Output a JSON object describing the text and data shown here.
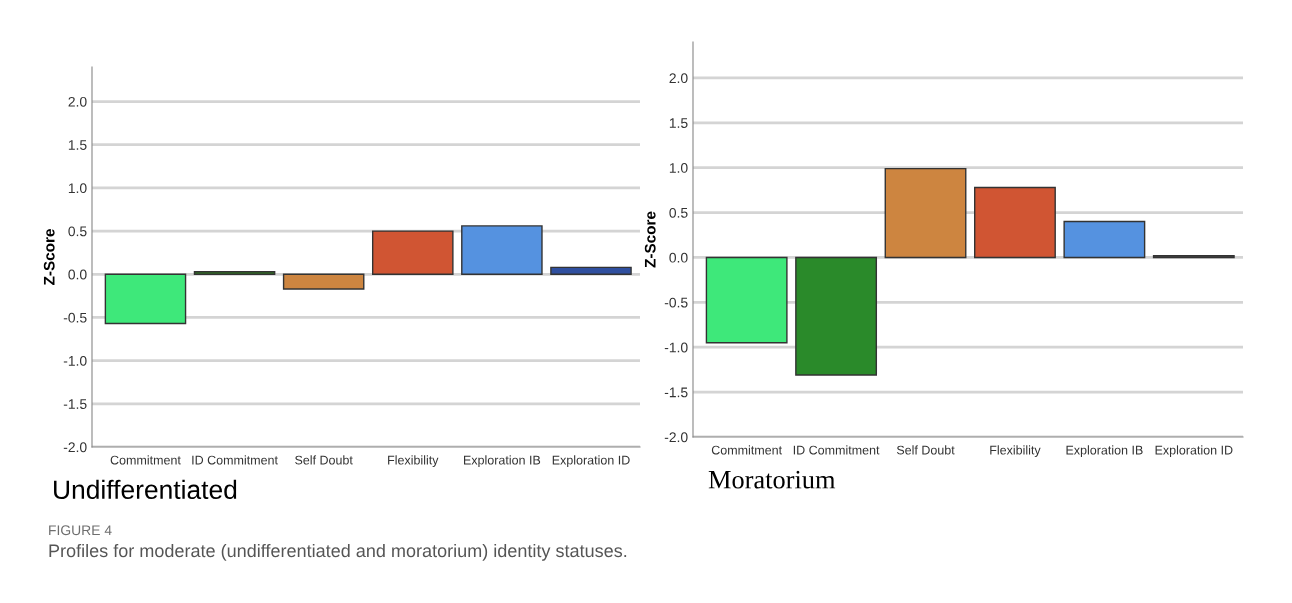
{
  "chart_data": [
    {
      "type": "bar",
      "title": "Undifferentiated",
      "ylabel": "Z-Score",
      "categories": [
        "Commitment",
        "ID Commitment",
        "Self Doubt",
        "Flexibility",
        "Exploration IB",
        "Exploration ID"
      ],
      "values": [
        -0.57,
        0.03,
        -0.17,
        0.5,
        0.56,
        0.08
      ],
      "colors": [
        "#3ee87a",
        "#2f7a1f",
        "#cd8540",
        "#d05533",
        "#5592e0",
        "#2f4f9f"
      ],
      "ylim": [
        -2.0,
        2.4
      ],
      "yticks": [
        {
          "value": -2.0,
          "label": "-2.0"
        },
        {
          "value": -1.5,
          "label": "-1.5"
        },
        {
          "value": -1.0,
          "label": "-1.0"
        },
        {
          "value": -0.5,
          "label": "-0.5"
        },
        {
          "value": 0.0,
          "label": "0.0"
        },
        {
          "value": 0.5,
          "label": "0.5"
        },
        {
          "value": 1.0,
          "label": "1.0"
        },
        {
          "value": 1.5,
          "label": "1.5"
        },
        {
          "value": 2.0,
          "label": "2.0"
        }
      ],
      "grid": "y",
      "annotations": [
        "FIGURE 4",
        "Profiles for moderate (undifferentiated and moratorium) identity statuses."
      ]
    },
    {
      "type": "bar",
      "title": "Moratorium",
      "ylabel": "Z-Score",
      "categories": [
        "Commitment",
        "ID Commitment",
        "Self Doubt",
        "Flexibility",
        "Exploration IB",
        "Exploration ID"
      ],
      "values": [
        -0.95,
        -1.31,
        0.99,
        0.78,
        0.4,
        0.02
      ],
      "colors": [
        "#3ee87a",
        "#2a8a2a",
        "#cd8540",
        "#d05533",
        "#5592e0",
        "#444444"
      ],
      "ylim": [
        -2.0,
        2.4
      ],
      "yticks": [
        {
          "value": -2.0,
          "label": "-2.0"
        },
        {
          "value": -1.5,
          "label": "-1.5"
        },
        {
          "value": -1.0,
          "label": "-1.0"
        },
        {
          "value": -0.5,
          "label": "-0.5"
        },
        {
          "value": 0.0,
          "label": "0.0"
        },
        {
          "value": 0.5,
          "label": "0.5"
        },
        {
          "value": 1.0,
          "label": "1.0"
        },
        {
          "value": 1.5,
          "label": "1.5"
        },
        {
          "value": 2.0,
          "label": "2.0"
        }
      ],
      "grid": "y"
    }
  ]
}
